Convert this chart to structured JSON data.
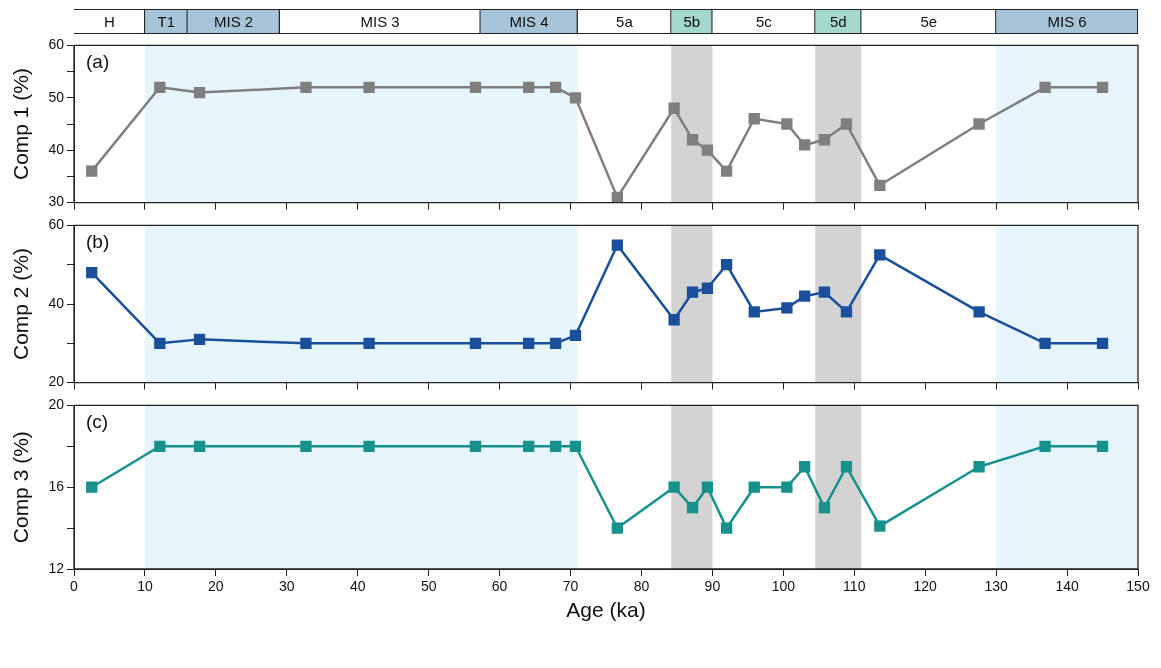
{
  "chart_data": [
    {
      "type": "bar",
      "orientation": "horizontal",
      "stacked": true,
      "tick_labels": false,
      "categories": [
        null
      ],
      "xlim": [
        0,
        150
      ],
      "series": [
        {
          "name": "H",
          "color": "#ffffff",
          "values": [
            10
          ]
        },
        {
          "name": "T1",
          "color": "#a7c4d8",
          "values": [
            6
          ]
        },
        {
          "name": "MIS 2",
          "color": "#a7c4d8",
          "values": [
            13
          ]
        },
        {
          "name": "MIS 3",
          "color": "#ffffff",
          "values": [
            28.3
          ]
        },
        {
          "name": "MIS 4",
          "color": "#a7c4d8",
          "values": [
            13.7
          ]
        },
        {
          "name": "5a",
          "color": "#ffffff",
          "values": [
            13.2
          ]
        },
        {
          "name": "5b",
          "color": "#a4d8cc",
          "values": [
            5.8
          ]
        },
        {
          "name": "5c",
          "color": "#ffffff",
          "values": [
            14.5
          ]
        },
        {
          "name": "5d",
          "color": "#a4d8cc",
          "values": [
            6.5
          ]
        },
        {
          "name": "5e",
          "color": "#ffffff",
          "values": [
            19
          ]
        },
        {
          "name": "MIS 6",
          "color": "#a7c4d8",
          "values": [
            20
          ]
        }
      ]
    },
    {
      "type": "line",
      "ylabel": "Comp 1 (%)",
      "annotations": [
        "(a)"
      ],
      "marker": "square",
      "tick_labels": "y",
      "xlim": [
        0,
        150
      ],
      "xticks": [
        0,
        10,
        20,
        30,
        40,
        50,
        60,
        70,
        80,
        90,
        100,
        110,
        120,
        130,
        140,
        150
      ],
      "ylim": [
        30,
        60
      ],
      "yticks": [
        30,
        {
          "value": 35,
          "label": null
        },
        40,
        {
          "value": 45,
          "label": null
        },
        50,
        {
          "value": 55,
          "label": null
        },
        60
      ],
      "bands": [
        {
          "axis": "x",
          "from": 10,
          "to": 71,
          "color": "#e6f5fb"
        },
        {
          "axis": "x",
          "from": 84.2,
          "to": 90,
          "color": "#d3d3d3"
        },
        {
          "axis": "x",
          "from": 104.5,
          "to": 111,
          "color": "#d3d3d3"
        },
        {
          "axis": "x",
          "from": 130,
          "to": 150,
          "color": "#e6f5fb"
        }
      ],
      "x": [
        2.5,
        12.1,
        17.7,
        32.7,
        41.6,
        56.6,
        64.1,
        67.9,
        70.7,
        76.6,
        84.6,
        87.2,
        89.3,
        92,
        95.9,
        100.5,
        103,
        105.8,
        108.9,
        113.6,
        127.6,
        136.9,
        145
      ],
      "series": [
        {
          "color": "#7f7f7f",
          "values": [
            36,
            52,
            51,
            52,
            52,
            52,
            52,
            52,
            50,
            31,
            48,
            42,
            40,
            36,
            46,
            45,
            41,
            42,
            45,
            33.3,
            45,
            52,
            52
          ]
        }
      ]
    },
    {
      "type": "line",
      "ylabel": "Comp 2 (%)",
      "annotations": [
        "(b)"
      ],
      "marker": "square",
      "tick_labels": "y",
      "xlim": [
        0,
        150
      ],
      "xticks": [
        0,
        10,
        20,
        30,
        40,
        50,
        60,
        70,
        80,
        90,
        100,
        110,
        120,
        130,
        140,
        150
      ],
      "ylim": [
        20,
        60
      ],
      "yticks": [
        20,
        {
          "value": 30,
          "label": null
        },
        40,
        {
          "value": 50,
          "label": null
        },
        60
      ],
      "bands": [
        {
          "axis": "x",
          "from": 10,
          "to": 71,
          "color": "#e6f5fb"
        },
        {
          "axis": "x",
          "from": 84.2,
          "to": 90,
          "color": "#d3d3d3"
        },
        {
          "axis": "x",
          "from": 104.5,
          "to": 111,
          "color": "#d3d3d3"
        },
        {
          "axis": "x",
          "from": 130,
          "to": 150,
          "color": "#e6f5fb"
        }
      ],
      "x": [
        2.5,
        12.1,
        17.7,
        32.7,
        41.6,
        56.6,
        64.1,
        67.9,
        70.7,
        76.6,
        84.6,
        87.2,
        89.3,
        92,
        95.9,
        100.5,
        103,
        105.8,
        108.9,
        113.6,
        127.6,
        136.9,
        145
      ],
      "series": [
        {
          "color": "#1a4f9c",
          "values": [
            48,
            30,
            31,
            30,
            30,
            30,
            30,
            30,
            32,
            55,
            36,
            43,
            44,
            50,
            38,
            39,
            42,
            43,
            38,
            52.5,
            38,
            30,
            30
          ]
        }
      ]
    },
    {
      "type": "line",
      "ylabel": "Comp 3 (%)",
      "xlabel": "Age (ka)",
      "annotations": [
        "(c)"
      ],
      "marker": "square",
      "xlim": [
        0,
        150
      ],
      "xticks": [
        0,
        10,
        20,
        30,
        40,
        50,
        60,
        70,
        80,
        90,
        100,
        110,
        120,
        130,
        140,
        150
      ],
      "ylim": [
        12,
        20
      ],
      "yticks": [
        12,
        {
          "value": 14,
          "label": null
        },
        16,
        {
          "value": 18,
          "label": null
        },
        20
      ],
      "bands": [
        {
          "axis": "x",
          "from": 10,
          "to": 71,
          "color": "#e6f5fb"
        },
        {
          "axis": "x",
          "from": 84.2,
          "to": 90,
          "color": "#d3d3d3"
        },
        {
          "axis": "x",
          "from": 104.5,
          "to": 111,
          "color": "#d3d3d3"
        },
        {
          "axis": "x",
          "from": 130,
          "to": 150,
          "color": "#e6f5fb"
        }
      ],
      "x": [
        2.5,
        12.1,
        17.7,
        32.7,
        41.6,
        56.6,
        64.1,
        67.9,
        70.7,
        76.6,
        84.6,
        87.2,
        89.3,
        92,
        95.9,
        100.5,
        103,
        105.8,
        108.9,
        113.6,
        127.6,
        136.9,
        145
      ],
      "series": [
        {
          "color": "#16918c",
          "values": [
            16,
            18,
            18,
            18,
            18,
            18,
            18,
            18,
            18,
            14,
            16,
            15,
            16,
            14,
            16,
            16,
            17,
            15,
            17,
            14.1,
            17,
            18,
            18
          ]
        }
      ]
    }
  ]
}
